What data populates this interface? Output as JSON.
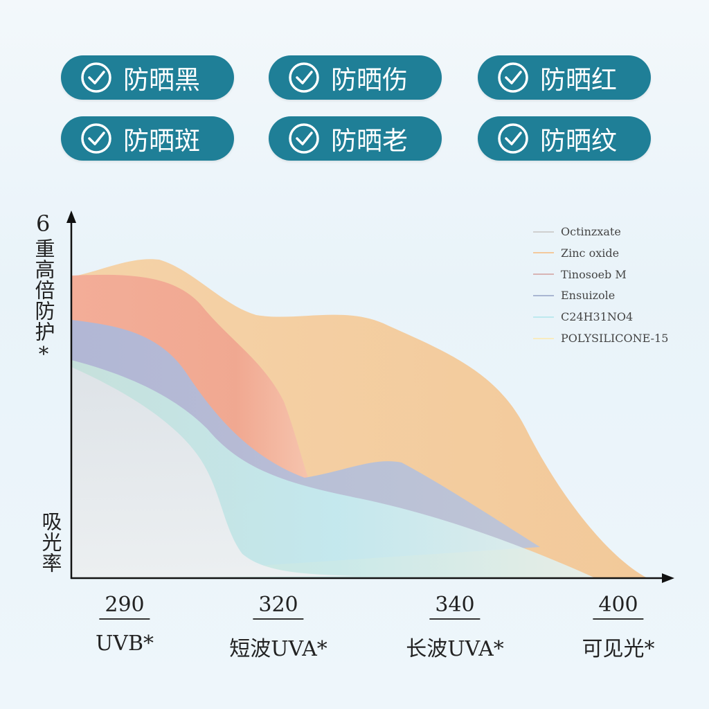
{
  "badges": [
    "防晒黑",
    "防晒伤",
    "防晒红",
    "防晒斑",
    "防晒老",
    "防晒纹"
  ],
  "y_axis": {
    "top": "6",
    "label": "重高倍防护*",
    "bottom": "吸光率"
  },
  "legend": [
    {
      "name": "Octinzxate",
      "color": "#cfcfcf"
    },
    {
      "name": "Zinc oxide",
      "color": "#f3c99c"
    },
    {
      "name": "Tinosoeb M",
      "color": "#d8b4b4"
    },
    {
      "name": "Ensuizole",
      "color": "#a9b6d2"
    },
    {
      "name": "C24H31NO4",
      "color": "#bde9ef"
    },
    {
      "name": "POLYSILICONE-15",
      "color": "#f8ebbf"
    }
  ],
  "x_axis": [
    {
      "value": 290,
      "label": "UVB*"
    },
    {
      "value": 320,
      "label": "短波UVA*"
    },
    {
      "value": 340,
      "label": "长波UVA*"
    },
    {
      "value": 400,
      "label": "可见光*"
    }
  ]
}
